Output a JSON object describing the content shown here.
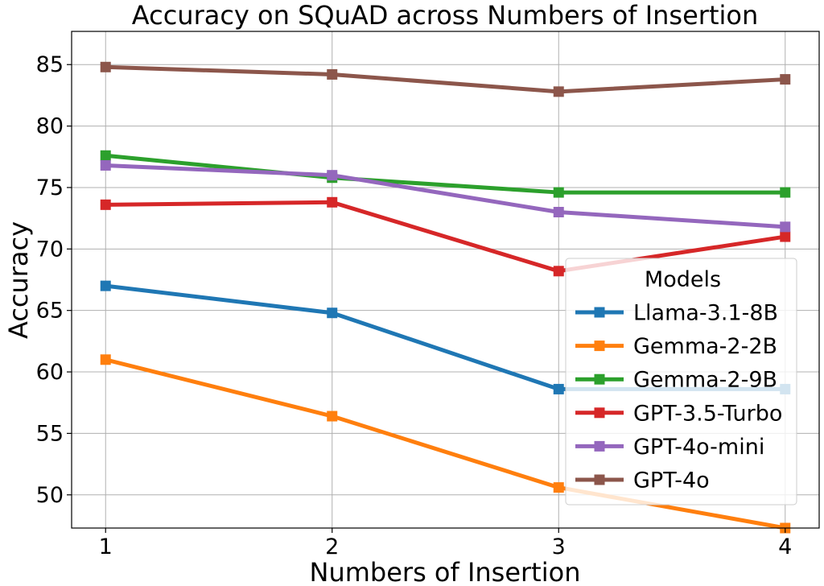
{
  "chart_data": {
    "type": "line",
    "title": "Accuracy on SQuAD across Numbers of Insertion",
    "xlabel": "Numbers of Insertion",
    "ylabel": "Accuracy",
    "x": [
      1,
      2,
      3,
      4
    ],
    "xlim": [
      0.85,
      4.15
    ],
    "ylim": [
      47.3,
      87.7
    ],
    "yticks": [
      50,
      55,
      60,
      65,
      70,
      75,
      80,
      85
    ],
    "grid": true,
    "legend": {
      "title": "Models",
      "placement": "lower-right"
    },
    "series": [
      {
        "name": "Llama-3.1-8B",
        "color": "#1f77b4",
        "values": [
          67.0,
          64.8,
          58.6,
          58.6
        ]
      },
      {
        "name": "Gemma-2-2B",
        "color": "#ff7f0e",
        "values": [
          61.0,
          56.4,
          50.6,
          47.3
        ]
      },
      {
        "name": "Gemma-2-9B",
        "color": "#2ca02c",
        "values": [
          77.6,
          75.8,
          74.6,
          74.6
        ]
      },
      {
        "name": "GPT-3.5-Turbo",
        "color": "#d62728",
        "values": [
          73.6,
          73.8,
          68.2,
          71.0
        ]
      },
      {
        "name": "GPT-4o-mini",
        "color": "#9467bd",
        "values": [
          76.8,
          76.0,
          73.0,
          71.8
        ]
      },
      {
        "name": "GPT-4o",
        "color": "#8c564b",
        "values": [
          84.8,
          84.2,
          82.8,
          83.8
        ]
      }
    ]
  }
}
